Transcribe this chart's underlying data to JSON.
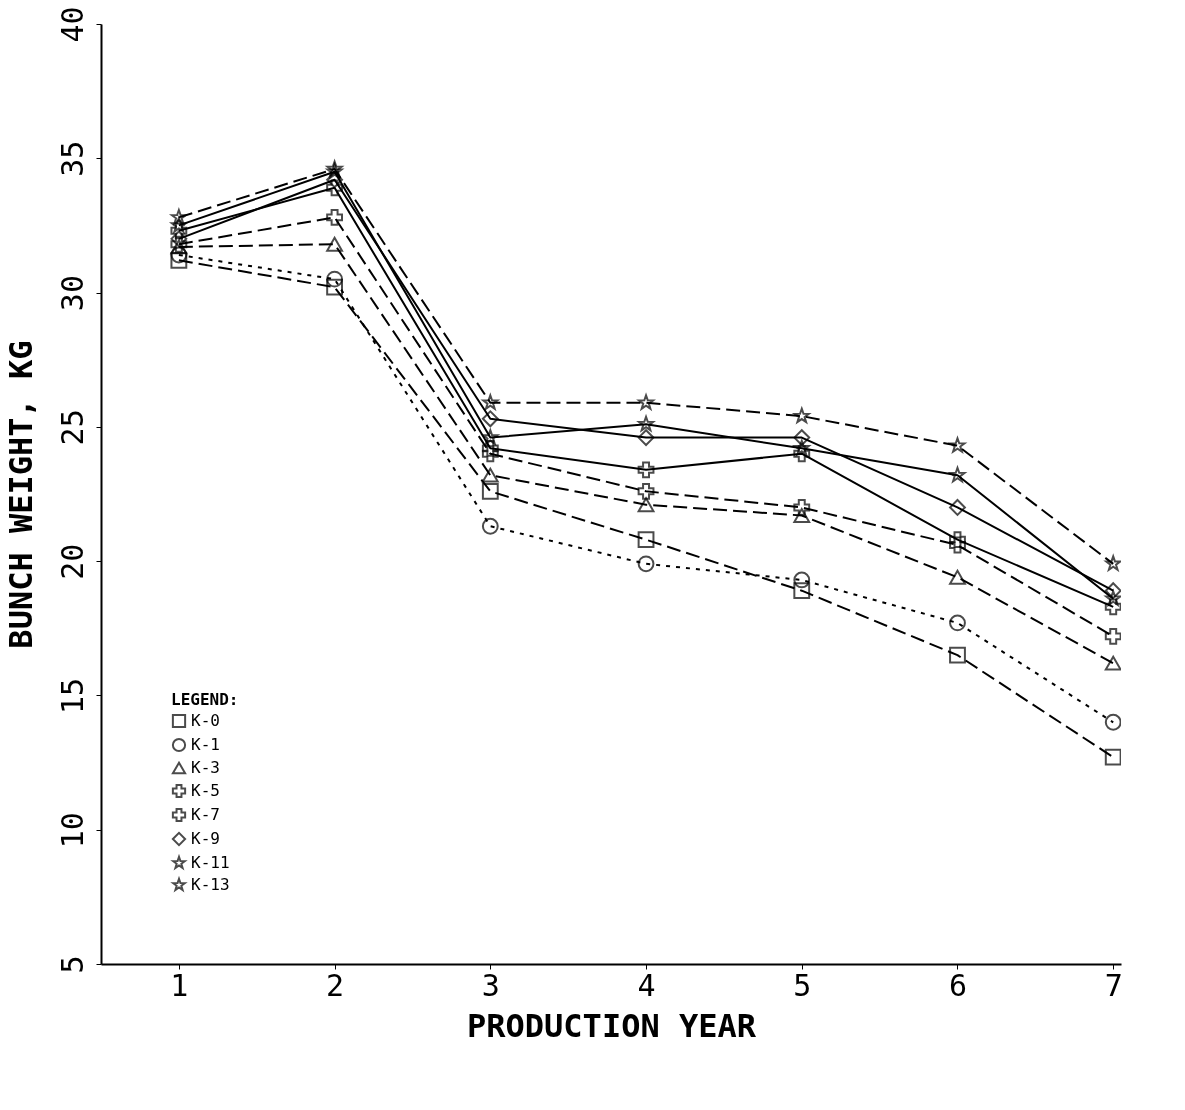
{
  "chart_data": {
    "type": "line",
    "xlabel": "PRODUCTION YEAR",
    "ylabel": "BUNCH WEIGHT, KG",
    "legend_title": "LEGEND:",
    "x": [
      1,
      2,
      3,
      4,
      5,
      6,
      7
    ],
    "xlim": [
      0.5,
      7.05
    ],
    "xticks": [
      1,
      2,
      3,
      4,
      5,
      6,
      7
    ],
    "ylim": [
      5,
      40
    ],
    "yticks": [
      5,
      10,
      15,
      20,
      25,
      30,
      35,
      40
    ],
    "grid": false,
    "legend": "bottom left",
    "series": [
      {
        "name": "K-0",
        "color": "#000000",
        "marker": "square",
        "line_style": "dashed",
        "values": [
          31.2,
          30.2,
          22.6,
          20.8,
          18.9,
          16.5,
          12.7
        ]
      },
      {
        "name": "K-1",
        "color": "#000000",
        "marker": "circle",
        "line_style": "dotted",
        "values": [
          31.4,
          30.5,
          21.3,
          19.9,
          19.3,
          17.7,
          14.0
        ]
      },
      {
        "name": "K-3",
        "color": "#000000",
        "marker": "triangle",
        "line_style": "dashed",
        "values": [
          31.7,
          31.8,
          23.2,
          22.1,
          21.7,
          19.4,
          16.2
        ]
      },
      {
        "name": "K-5",
        "color": "#000000",
        "marker": "cross",
        "line_style": "dashed",
        "values": [
          31.8,
          32.8,
          24.0,
          22.6,
          22.0,
          20.6,
          17.2
        ]
      },
      {
        "name": "K-7",
        "color": "#000000",
        "marker": "cross",
        "line_style": "solid",
        "values": [
          32.3,
          33.9,
          24.2,
          23.4,
          24.0,
          20.8,
          18.3
        ]
      },
      {
        "name": "K-9",
        "color": "#000000",
        "marker": "diamond",
        "line_style": "solid",
        "values": [
          32.0,
          34.2,
          25.3,
          24.6,
          24.6,
          22.0,
          18.9
        ]
      },
      {
        "name": "K-11",
        "color": "#000000",
        "marker": "star",
        "line_style": "solid",
        "values": [
          32.5,
          34.5,
          24.6,
          25.1,
          24.2,
          23.2,
          18.6
        ]
      },
      {
        "name": "K-13",
        "color": "#000000",
        "marker": "star",
        "line_style": "dashed",
        "values": [
          32.8,
          34.6,
          25.9,
          25.9,
          25.4,
          24.3,
          19.9
        ]
      }
    ]
  }
}
